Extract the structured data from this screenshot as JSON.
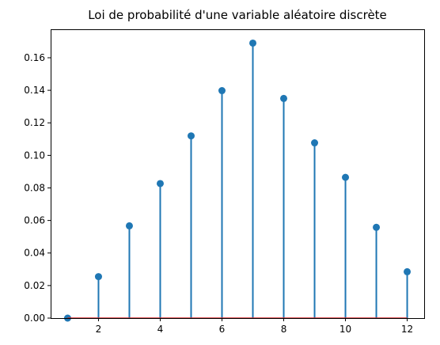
{
  "chart_data": {
    "type": "stem",
    "title": "Loi de probabilité d'une variable aléatoire discrète",
    "xlabel": "",
    "ylabel": "",
    "x": [
      1,
      2,
      3,
      4,
      5,
      6,
      7,
      8,
      9,
      10,
      11,
      12
    ],
    "y": [
      0.0,
      0.0255,
      0.0567,
      0.0827,
      0.112,
      0.1398,
      0.169,
      0.135,
      0.1077,
      0.0865,
      0.0558,
      0.0285
    ],
    "xlim": [
      0.45,
      12.55
    ],
    "ylim": [
      0.0,
      0.1775
    ],
    "xticks": [
      2,
      4,
      6,
      8,
      10,
      12
    ],
    "xtick_labels": [
      "2",
      "4",
      "6",
      "8",
      "10",
      "12"
    ],
    "yticks": [
      0.0,
      0.02,
      0.04,
      0.06,
      0.08,
      0.1,
      0.12,
      0.14,
      0.16
    ],
    "ytick_labels": [
      "0.00",
      "0.02",
      "0.04",
      "0.06",
      "0.08",
      "0.10",
      "0.12",
      "0.14",
      "0.16"
    ],
    "grid": false,
    "color": "#1f77b4"
  }
}
